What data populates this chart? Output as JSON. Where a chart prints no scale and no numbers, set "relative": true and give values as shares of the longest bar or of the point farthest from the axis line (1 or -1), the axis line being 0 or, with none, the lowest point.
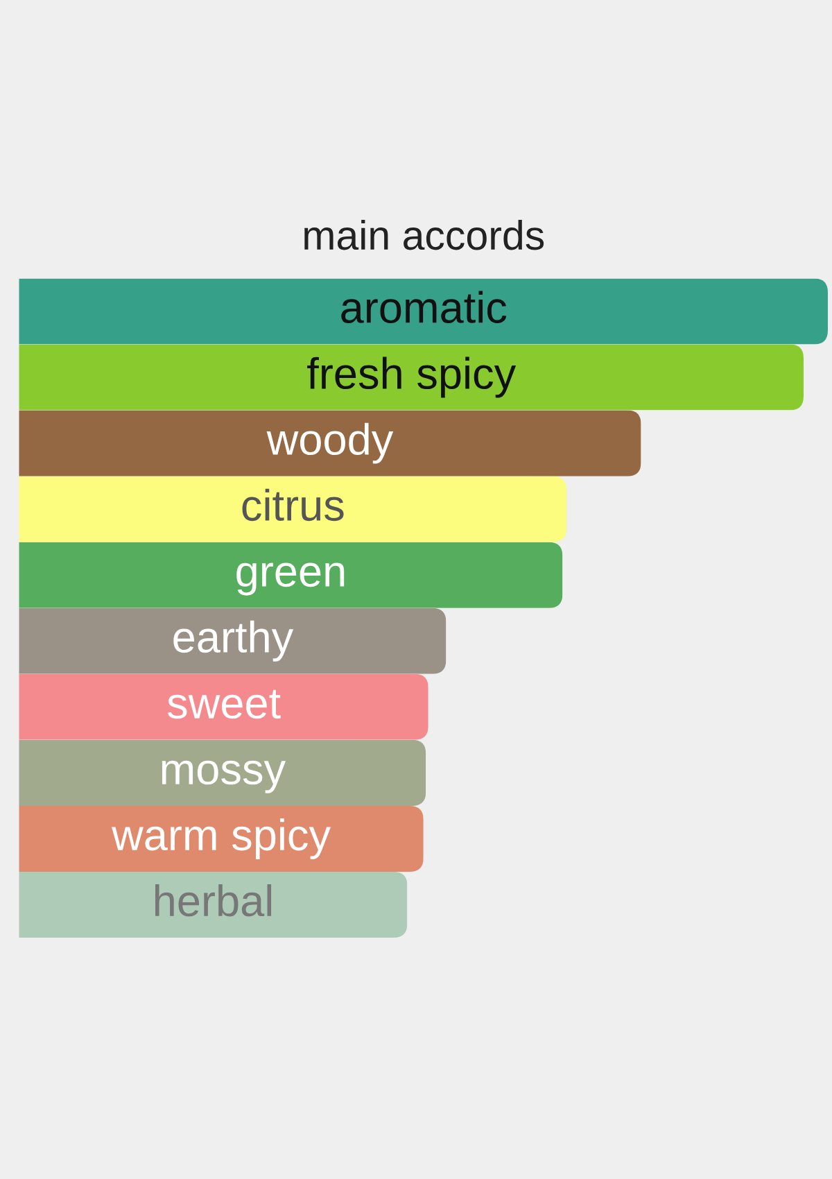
{
  "chart_data": {
    "type": "bar",
    "title": "main accords",
    "orientation": "horizontal",
    "relative": true,
    "categories": [
      "aromatic",
      "fresh spicy",
      "woody",
      "citrus",
      "green",
      "earthy",
      "sweet",
      "mossy",
      "warm spicy",
      "herbal"
    ],
    "values": [
      1,
      0.97,
      0.769,
      0.677,
      0.672,
      0.528,
      0.506,
      0.503,
      0.5,
      0.48
    ],
    "colors": [
      "#37a089",
      "#89cb2f",
      "#946843",
      "#fcfc7f",
      "#55ad5d",
      "#9a9187",
      "#f48a8d",
      "#a1aa8c",
      "#e08a6d",
      "#adcbb6"
    ]
  }
}
